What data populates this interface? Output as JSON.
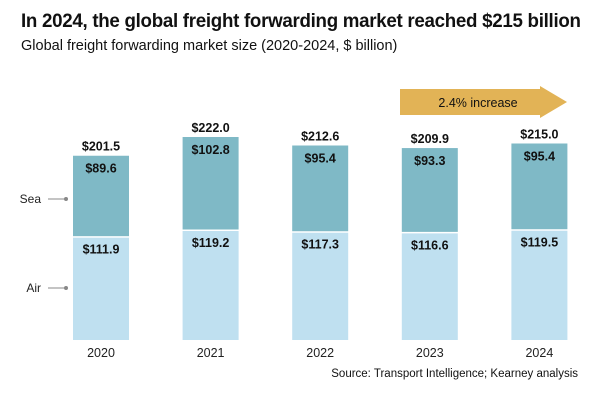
{
  "title": "In 2024, the global freight forwarding market reached $215 billion",
  "subtitle": "Global freight forwarding market size (2020-2024, $ billion)",
  "source": "Source: Transport Intelligence; Kearney analysis",
  "chart_data": {
    "type": "bar",
    "stacked": true,
    "categories": [
      "2020",
      "2021",
      "2022",
      "2023",
      "2024"
    ],
    "series": [
      {
        "name": "Air",
        "values": [
          111.9,
          119.2,
          117.3,
          116.6,
          119.5
        ],
        "labels": [
          "$111.9",
          "$119.2",
          "$117.3",
          "$116.6",
          "$119.5"
        ],
        "color": "#bfe0f0"
      },
      {
        "name": "Sea",
        "values": [
          89.6,
          102.8,
          95.4,
          93.3,
          95.4
        ],
        "labels": [
          "$89.6",
          "$102.8",
          "$95.4",
          "$93.3",
          "$95.4"
        ],
        "color": "#7fb9c6"
      }
    ],
    "totals": [
      201.5,
      222.0,
      212.6,
      209.9,
      215.0
    ],
    "total_labels": [
      "$201.5",
      "$222.0",
      "$212.6",
      "$209.9",
      "$215.0"
    ],
    "annotation": {
      "text": "2.4% increase",
      "from": "2023",
      "to": "2024",
      "color": "#e2b356"
    },
    "ylim": [
      0,
      222
    ],
    "grid": false,
    "legend": "left"
  }
}
